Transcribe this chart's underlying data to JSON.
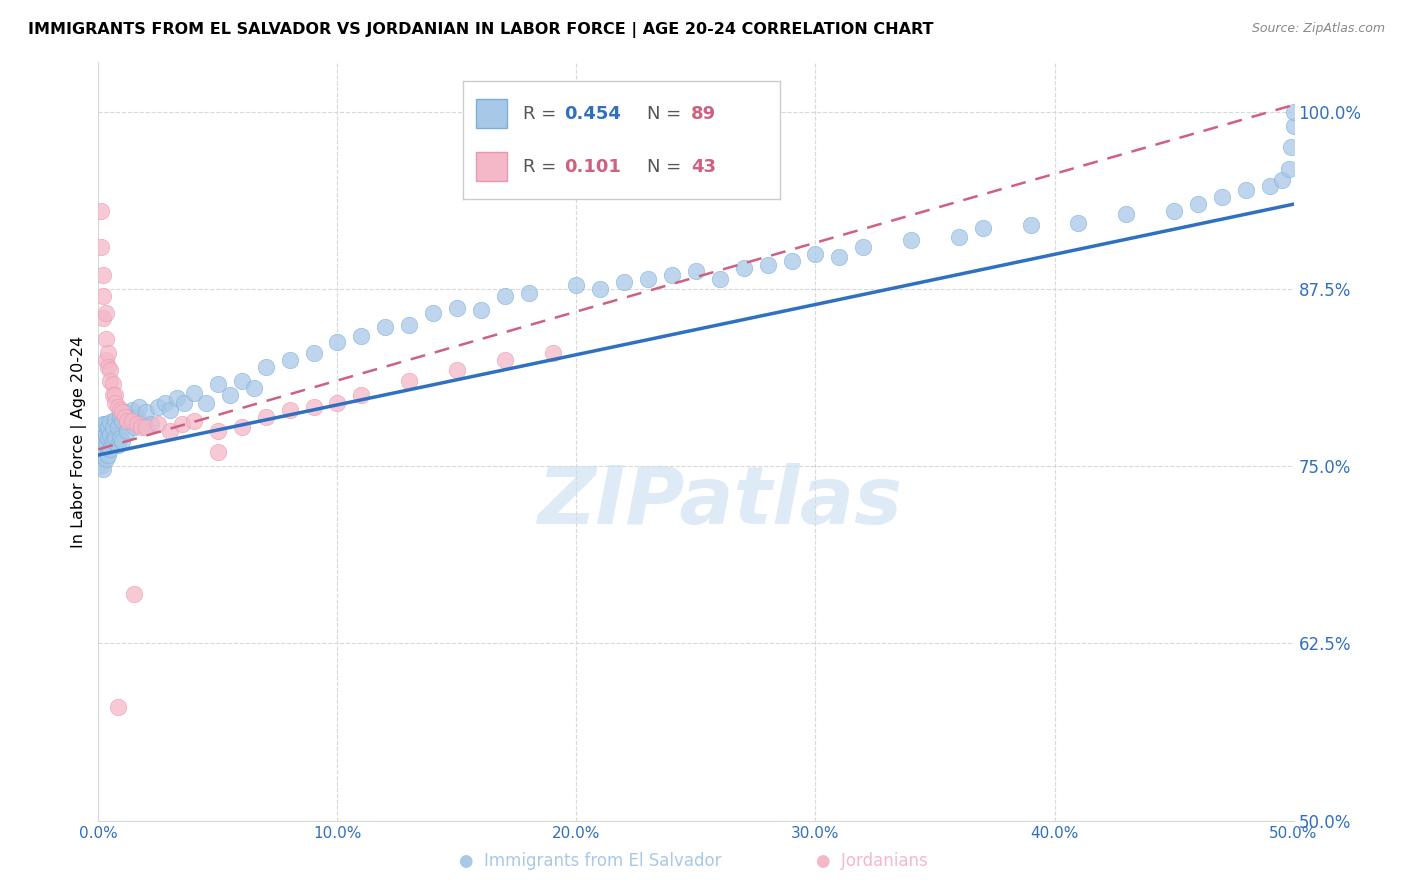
{
  "title": "IMMIGRANTS FROM EL SALVADOR VS JORDANIAN IN LABOR FORCE | AGE 20-24 CORRELATION CHART",
  "source": "Source: ZipAtlas.com",
  "ylabel": "In Labor Force | Age 20-24",
  "xlim": [
    0.0,
    0.5
  ],
  "ylim": [
    0.5,
    1.035
  ],
  "x_tick_vals": [
    0.0,
    0.1,
    0.2,
    0.3,
    0.4,
    0.5
  ],
  "x_tick_labels": [
    "0.0%",
    "10.0%",
    "20.0%",
    "30.0%",
    "40.0%",
    "50.0%"
  ],
  "y_tick_vals": [
    0.5,
    0.625,
    0.75,
    0.875,
    1.0
  ],
  "y_tick_labels": [
    "50.0%",
    "62.5%",
    "75.0%",
    "87.5%",
    "100.0%"
  ],
  "blue_fill": "#a8c8e8",
  "blue_edge": "#7ab0d8",
  "pink_fill": "#f4b8c8",
  "pink_edge": "#e898b0",
  "trend_blue_color": "#3070c0",
  "trend_pink_color": "#d06080",
  "watermark_color": "#c8dff0",
  "legend_r1_color": "#3070c0",
  "legend_n1_color": "#d06080",
  "legend_r2_color": "#d06080",
  "legend_n2_color": "#d06080",
  "tick_color": "#3070c0",
  "grid_color": "#d8d8d8",
  "blue_trend_x0": 0.0,
  "blue_trend_y0": 0.758,
  "blue_trend_x1": 0.5,
  "blue_trend_y1": 0.935,
  "pink_trend_x0": 0.0,
  "pink_trend_y0": 0.762,
  "pink_trend_x1": 0.5,
  "pink_trend_y1": 1.005,
  "blue_x": [
    0.001,
    0.001,
    0.001,
    0.002,
    0.002,
    0.002,
    0.002,
    0.003,
    0.003,
    0.003,
    0.003,
    0.004,
    0.004,
    0.004,
    0.005,
    0.005,
    0.005,
    0.006,
    0.006,
    0.007,
    0.007,
    0.008,
    0.008,
    0.009,
    0.009,
    0.01,
    0.01,
    0.011,
    0.012,
    0.013,
    0.014,
    0.015,
    0.016,
    0.017,
    0.018,
    0.02,
    0.022,
    0.025,
    0.028,
    0.03,
    0.033,
    0.036,
    0.04,
    0.045,
    0.05,
    0.055,
    0.06,
    0.065,
    0.07,
    0.08,
    0.09,
    0.1,
    0.11,
    0.12,
    0.13,
    0.14,
    0.15,
    0.16,
    0.17,
    0.18,
    0.2,
    0.21,
    0.22,
    0.23,
    0.24,
    0.25,
    0.26,
    0.27,
    0.28,
    0.29,
    0.3,
    0.31,
    0.32,
    0.34,
    0.36,
    0.37,
    0.39,
    0.41,
    0.43,
    0.45,
    0.46,
    0.47,
    0.48,
    0.49,
    0.495,
    0.498,
    0.499,
    0.5,
    0.5
  ],
  "blue_y": [
    0.75,
    0.76,
    0.77,
    0.748,
    0.762,
    0.775,
    0.78,
    0.755,
    0.765,
    0.772,
    0.78,
    0.758,
    0.77,
    0.778,
    0.762,
    0.772,
    0.781,
    0.768,
    0.778,
    0.77,
    0.783,
    0.765,
    0.778,
    0.77,
    0.785,
    0.768,
    0.782,
    0.788,
    0.775,
    0.785,
    0.79,
    0.778,
    0.785,
    0.792,
    0.78,
    0.788,
    0.78,
    0.792,
    0.795,
    0.79,
    0.798,
    0.795,
    0.802,
    0.795,
    0.808,
    0.8,
    0.81,
    0.805,
    0.82,
    0.825,
    0.83,
    0.838,
    0.842,
    0.848,
    0.85,
    0.858,
    0.862,
    0.86,
    0.87,
    0.872,
    0.878,
    0.875,
    0.88,
    0.882,
    0.885,
    0.888,
    0.882,
    0.89,
    0.892,
    0.895,
    0.9,
    0.898,
    0.905,
    0.91,
    0.912,
    0.918,
    0.92,
    0.922,
    0.928,
    0.93,
    0.935,
    0.94,
    0.945,
    0.948,
    0.952,
    0.96,
    0.975,
    0.99,
    1.0
  ],
  "pink_x": [
    0.001,
    0.001,
    0.002,
    0.002,
    0.002,
    0.003,
    0.003,
    0.003,
    0.004,
    0.004,
    0.005,
    0.005,
    0.006,
    0.006,
    0.007,
    0.007,
    0.008,
    0.009,
    0.01,
    0.011,
    0.012,
    0.014,
    0.016,
    0.018,
    0.02,
    0.025,
    0.03,
    0.035,
    0.04,
    0.05,
    0.06,
    0.07,
    0.08,
    0.09,
    0.1,
    0.11,
    0.13,
    0.15,
    0.17,
    0.19,
    0.05,
    0.015,
    0.008
  ],
  "pink_y": [
    0.93,
    0.905,
    0.885,
    0.87,
    0.855,
    0.858,
    0.84,
    0.825,
    0.83,
    0.82,
    0.818,
    0.81,
    0.808,
    0.8,
    0.8,
    0.795,
    0.792,
    0.79,
    0.788,
    0.785,
    0.782,
    0.782,
    0.78,
    0.778,
    0.778,
    0.78,
    0.775,
    0.78,
    0.782,
    0.775,
    0.778,
    0.785,
    0.79,
    0.792,
    0.795,
    0.8,
    0.81,
    0.818,
    0.825,
    0.83,
    0.76,
    0.66,
    0.58
  ]
}
